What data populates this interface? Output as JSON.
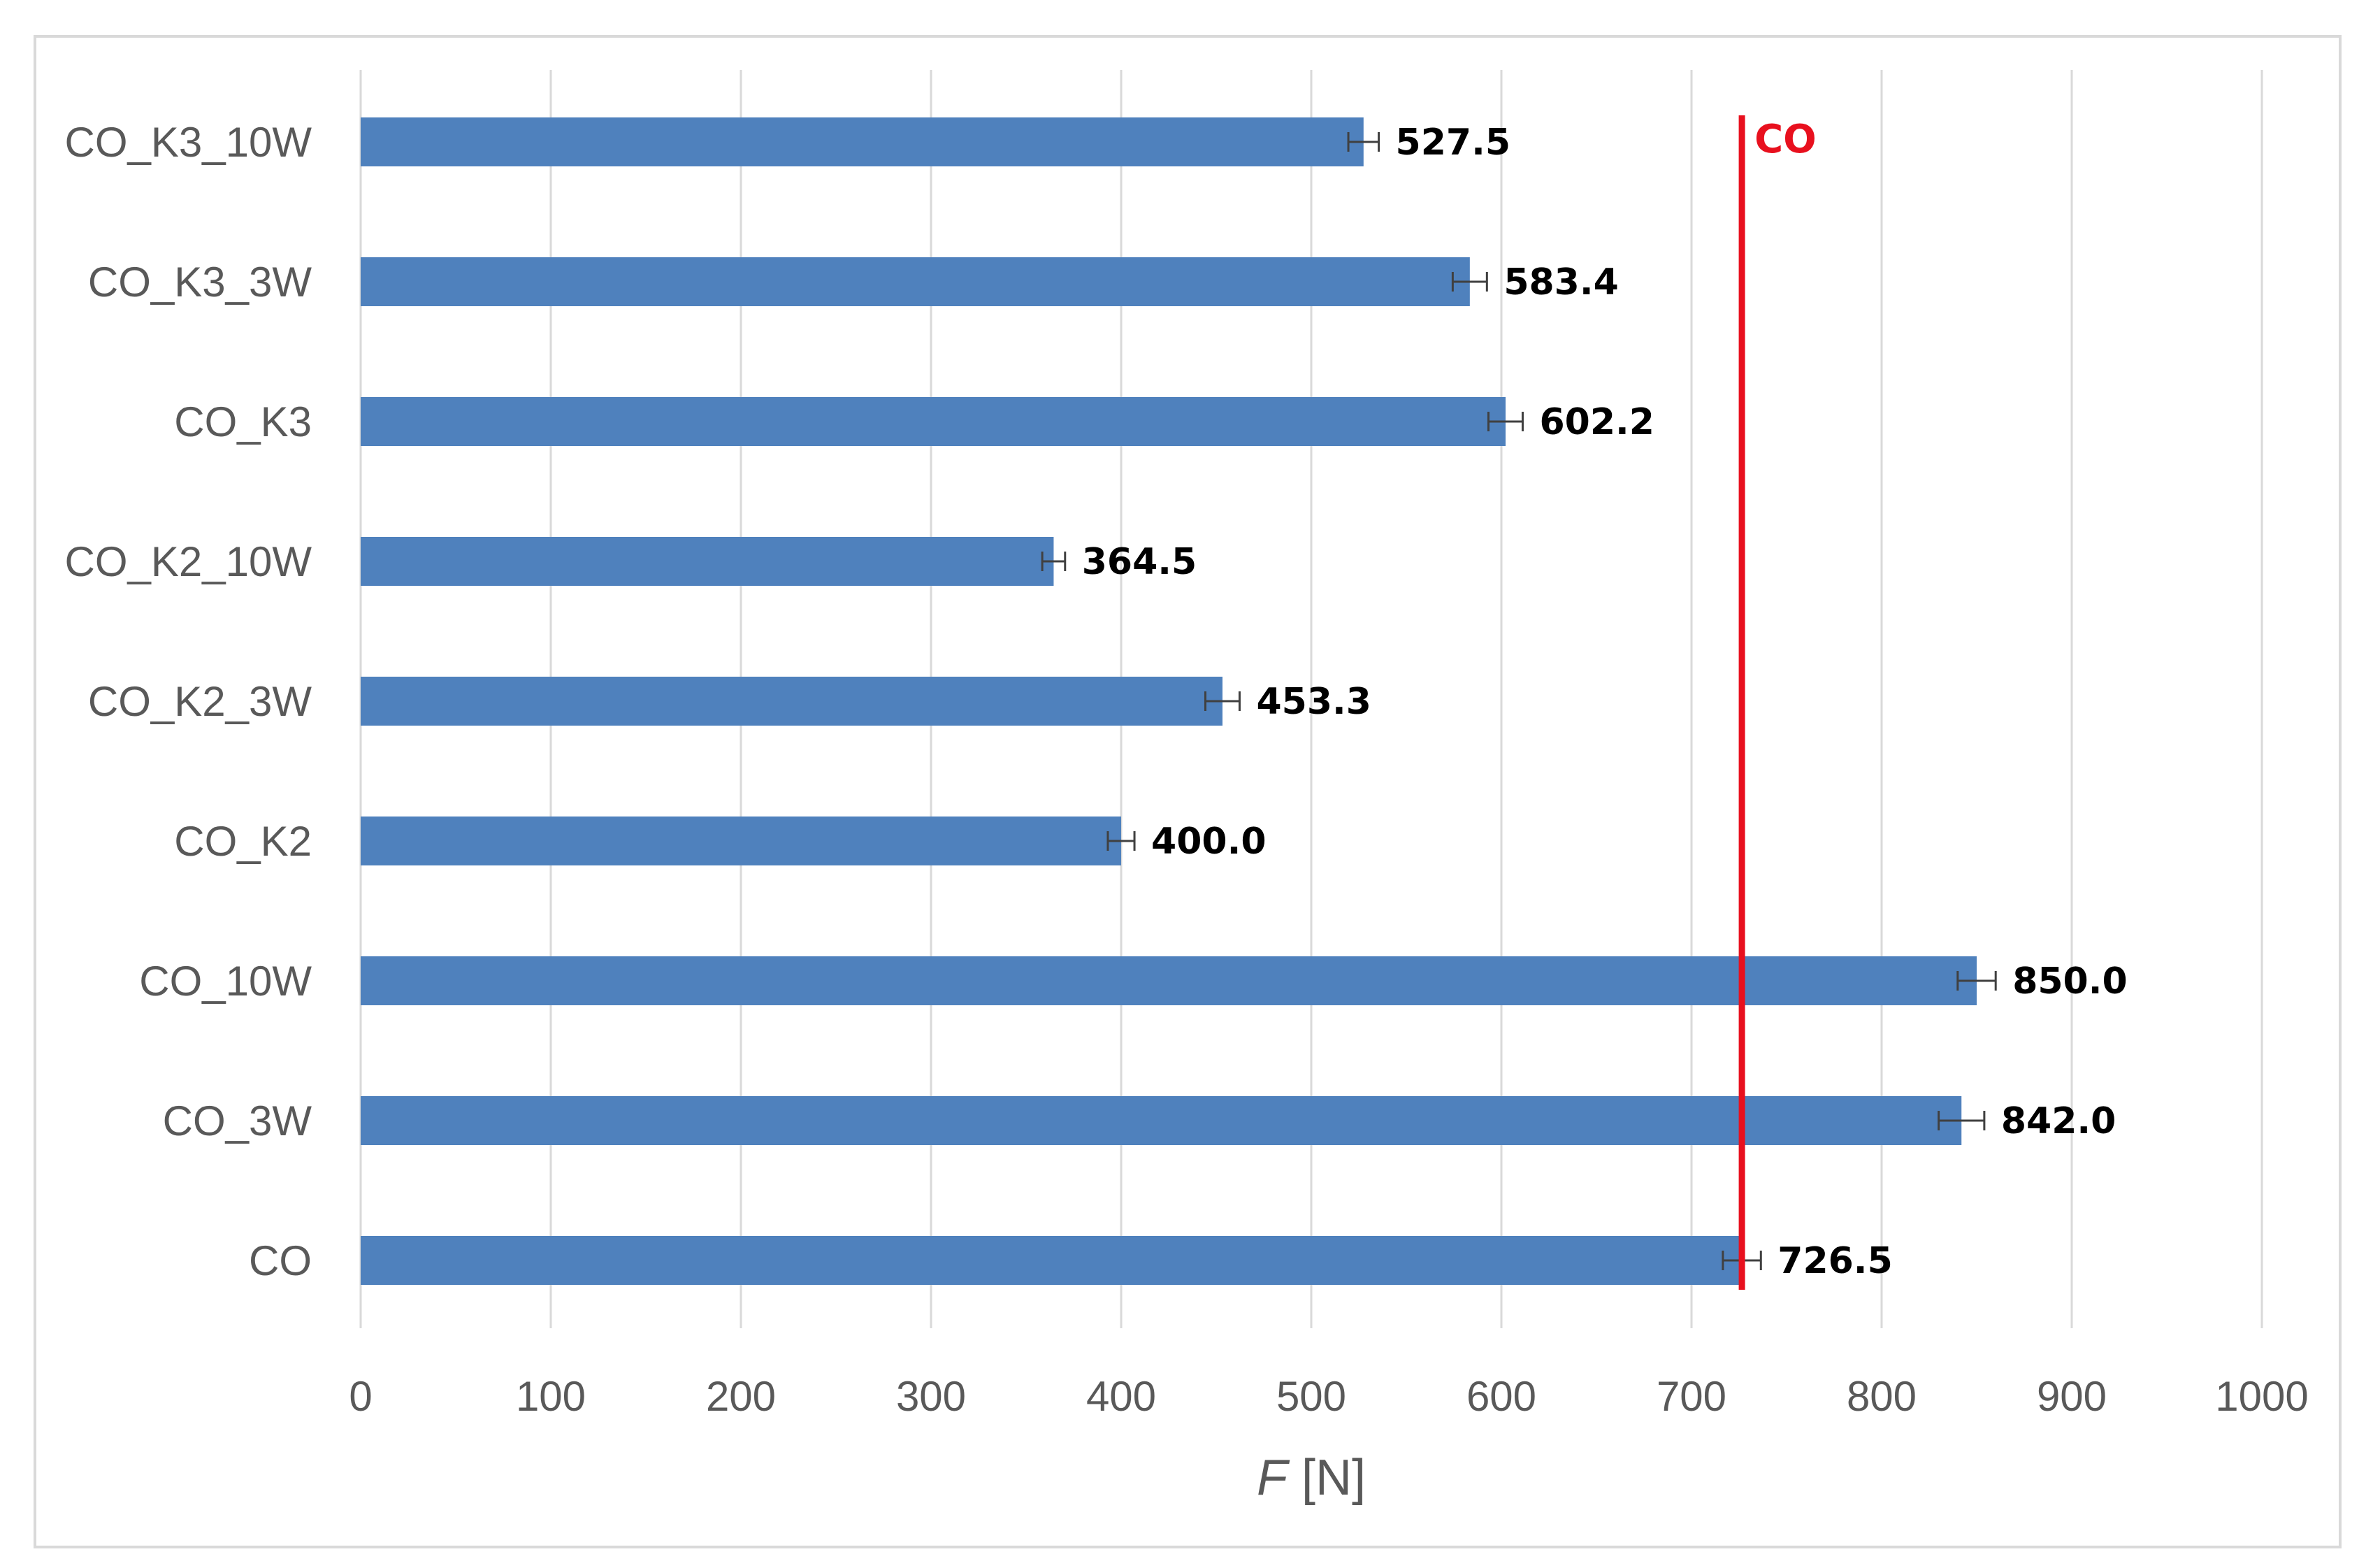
{
  "chart_data": {
    "type": "bar",
    "orientation": "horizontal",
    "categories": [
      "CO",
      "CO_3W",
      "CO_10W",
      "CO_K2",
      "CO_K2_3W",
      "CO_K2_10W",
      "CO_K3",
      "CO_K3_3W",
      "CO_K3_10W"
    ],
    "values": [
      726.5,
      842.0,
      850.0,
      400.0,
      453.3,
      364.5,
      602.2,
      583.4,
      527.5
    ],
    "value_labels": [
      "726.5",
      "842.0",
      "850.0",
      "400.0",
      "453.3",
      "364.5",
      "602.2",
      "583.4",
      "527.5"
    ],
    "errors": [
      10,
      12,
      10,
      7,
      9,
      6,
      9,
      9,
      8
    ],
    "xlabel_italic": "F",
    "xlabel_rest": " [N]",
    "xlim": [
      0,
      1000
    ],
    "xticks": [
      0,
      100,
      200,
      300,
      400,
      500,
      600,
      700,
      800,
      900,
      1000
    ],
    "xtick_labels": [
      "0",
      "100",
      "200",
      "300",
      "400",
      "500",
      "600",
      "700",
      "800",
      "900",
      "1000"
    ],
    "grid": "vertical",
    "bar_color": "#4f81bd",
    "error_color": "#404040",
    "reference_line": {
      "label": "CO",
      "value": 726.5,
      "color": "#e8101e"
    }
  }
}
